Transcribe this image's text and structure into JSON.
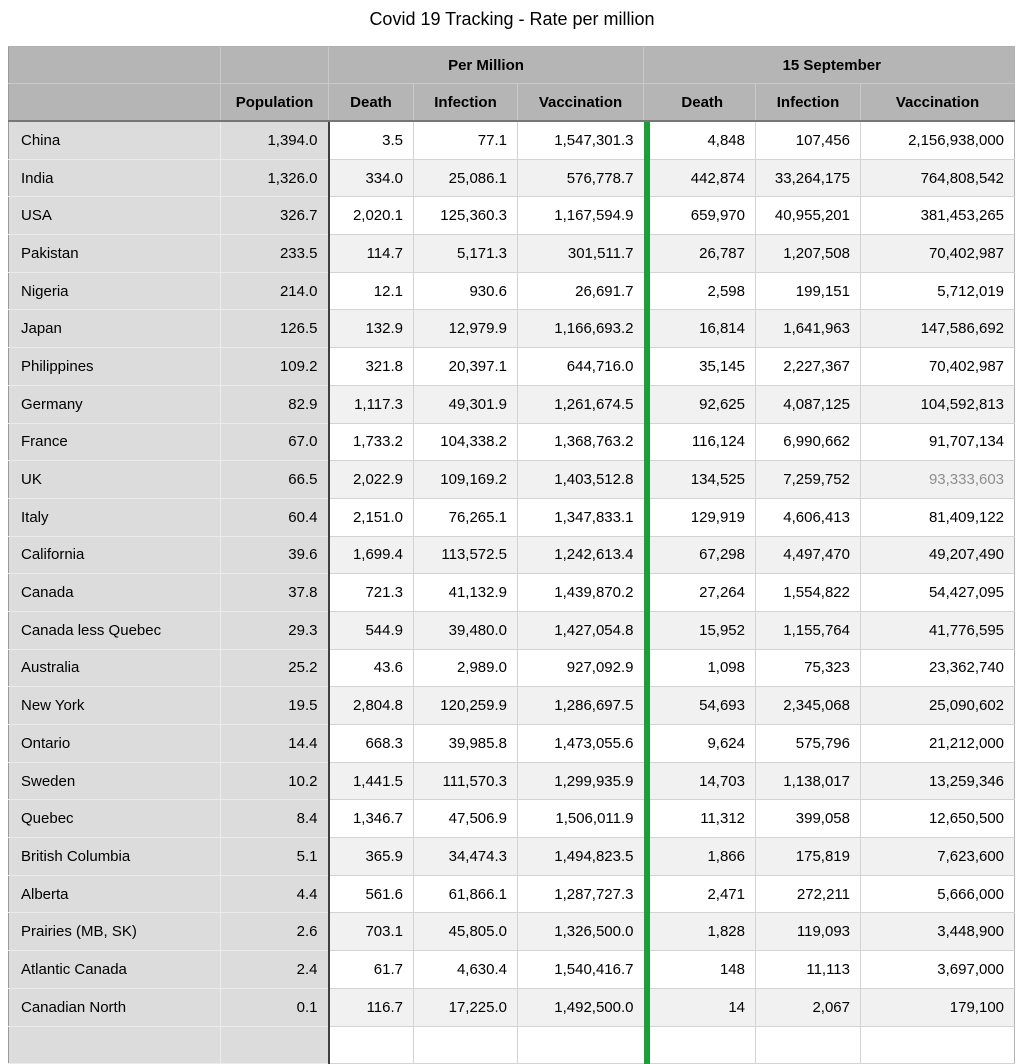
{
  "title": "Covid 19 Tracking - Rate per million",
  "chart_data": {
    "type": "table",
    "title": "Covid 19 Tracking - Rate per million",
    "groups": {
      "per_million": "Per Million",
      "sept15": "15 September"
    },
    "columns": {
      "population": "Population",
      "pm_death": "Death",
      "pm_infection": "Infection",
      "pm_vaccination": "Vaccination",
      "s15_death": "Death",
      "s15_infection": "Infection",
      "s15_vaccination": "Vaccination"
    },
    "colors": {
      "header_bg": "#b5b5b5",
      "label_column_bg": "#dcdcdc",
      "row_stripe_bg": "#f1f1f2",
      "green_divider": "#1e9e38",
      "muted_value_text": "#8e8e8e"
    },
    "rows": [
      {
        "name": "China",
        "population": "1,394.0",
        "pm_death": "3.5",
        "pm_infection": "77.1",
        "pm_vaccination": "1,547,301.3",
        "s15_death": "4,848",
        "s15_infection": "107,456",
        "s15_vaccination": "2,156,938,000"
      },
      {
        "name": "India",
        "population": "1,326.0",
        "pm_death": "334.0",
        "pm_infection": "25,086.1",
        "pm_vaccination": "576,778.7",
        "s15_death": "442,874",
        "s15_infection": "33,264,175",
        "s15_vaccination": "764,808,542"
      },
      {
        "name": "USA",
        "population": "326.7",
        "pm_death": "2,020.1",
        "pm_infection": "125,360.3",
        "pm_vaccination": "1,167,594.9",
        "s15_death": "659,970",
        "s15_infection": "40,955,201",
        "s15_vaccination": "381,453,265"
      },
      {
        "name": "Pakistan",
        "population": "233.5",
        "pm_death": "114.7",
        "pm_infection": "5,171.3",
        "pm_vaccination": "301,511.7",
        "s15_death": "26,787",
        "s15_infection": "1,207,508",
        "s15_vaccination": "70,402,987"
      },
      {
        "name": "Nigeria",
        "population": "214.0",
        "pm_death": "12.1",
        "pm_infection": "930.6",
        "pm_vaccination": "26,691.7",
        "s15_death": "2,598",
        "s15_infection": "199,151",
        "s15_vaccination": "5,712,019"
      },
      {
        "name": "Japan",
        "population": "126.5",
        "pm_death": "132.9",
        "pm_infection": "12,979.9",
        "pm_vaccination": "1,166,693.2",
        "s15_death": "16,814",
        "s15_infection": "1,641,963",
        "s15_vaccination": "147,586,692"
      },
      {
        "name": "Philippines",
        "population": "109.2",
        "pm_death": "321.8",
        "pm_infection": "20,397.1",
        "pm_vaccination": "644,716.0",
        "s15_death": "35,145",
        "s15_infection": "2,227,367",
        "s15_vaccination": "70,402,987"
      },
      {
        "name": "Germany",
        "population": "82.9",
        "pm_death": "1,117.3",
        "pm_infection": "49,301.9",
        "pm_vaccination": "1,261,674.5",
        "s15_death": "92,625",
        "s15_infection": "4,087,125",
        "s15_vaccination": "104,592,813"
      },
      {
        "name": "France",
        "population": "67.0",
        "pm_death": "1,733.2",
        "pm_infection": "104,338.2",
        "pm_vaccination": "1,368,763.2",
        "s15_death": "116,124",
        "s15_infection": "6,990,662",
        "s15_vaccination": "91,707,134"
      },
      {
        "name": "UK",
        "population": "66.5",
        "pm_death": "2,022.9",
        "pm_infection": "109,169.2",
        "pm_vaccination": "1,403,512.8",
        "s15_death": "134,525",
        "s15_infection": "7,259,752",
        "s15_vaccination": "93,333,603",
        "s15_vaccination_muted": true
      },
      {
        "name": "Italy",
        "population": "60.4",
        "pm_death": "2,151.0",
        "pm_infection": "76,265.1",
        "pm_vaccination": "1,347,833.1",
        "s15_death": "129,919",
        "s15_infection": "4,606,413",
        "s15_vaccination": "81,409,122"
      },
      {
        "name": "California",
        "population": "39.6",
        "pm_death": "1,699.4",
        "pm_infection": "113,572.5",
        "pm_vaccination": "1,242,613.4",
        "s15_death": "67,298",
        "s15_infection": "4,497,470",
        "s15_vaccination": "49,207,490"
      },
      {
        "name": "Canada",
        "population": "37.8",
        "pm_death": "721.3",
        "pm_infection": "41,132.9",
        "pm_vaccination": "1,439,870.2",
        "s15_death": "27,264",
        "s15_infection": "1,554,822",
        "s15_vaccination": "54,427,095"
      },
      {
        "name": "Canada less Quebec",
        "population": "29.3",
        "pm_death": "544.9",
        "pm_infection": "39,480.0",
        "pm_vaccination": "1,427,054.8",
        "s15_death": "15,952",
        "s15_infection": "1,155,764",
        "s15_vaccination": "41,776,595"
      },
      {
        "name": "Australia",
        "population": "25.2",
        "pm_death": "43.6",
        "pm_infection": "2,989.0",
        "pm_vaccination": "927,092.9",
        "s15_death": "1,098",
        "s15_infection": "75,323",
        "s15_vaccination": "23,362,740"
      },
      {
        "name": "New York",
        "population": "19.5",
        "pm_death": "2,804.8",
        "pm_infection": "120,259.9",
        "pm_vaccination": "1,286,697.5",
        "s15_death": "54,693",
        "s15_infection": "2,345,068",
        "s15_vaccination": "25,090,602"
      },
      {
        "name": "Ontario",
        "population": "14.4",
        "pm_death": "668.3",
        "pm_infection": "39,985.8",
        "pm_vaccination": "1,473,055.6",
        "s15_death": "9,624",
        "s15_infection": "575,796",
        "s15_vaccination": "21,212,000"
      },
      {
        "name": "Sweden",
        "population": "10.2",
        "pm_death": "1,441.5",
        "pm_infection": "111,570.3",
        "pm_vaccination": "1,299,935.9",
        "s15_death": "14,703",
        "s15_infection": "1,138,017",
        "s15_vaccination": "13,259,346"
      },
      {
        "name": "Quebec",
        "population": "8.4",
        "pm_death": "1,346.7",
        "pm_infection": "47,506.9",
        "pm_vaccination": "1,506,011.9",
        "s15_death": "11,312",
        "s15_infection": "399,058",
        "s15_vaccination": "12,650,500"
      },
      {
        "name": "British Columbia",
        "population": "5.1",
        "pm_death": "365.9",
        "pm_infection": "34,474.3",
        "pm_vaccination": "1,494,823.5",
        "s15_death": "1,866",
        "s15_infection": "175,819",
        "s15_vaccination": "7,623,600"
      },
      {
        "name": "Alberta",
        "population": "4.4",
        "pm_death": "561.6",
        "pm_infection": "61,866.1",
        "pm_vaccination": "1,287,727.3",
        "s15_death": "2,471",
        "s15_infection": "272,211",
        "s15_vaccination": "5,666,000"
      },
      {
        "name": "Prairies (MB, SK)",
        "population": "2.6",
        "pm_death": "703.1",
        "pm_infection": "45,805.0",
        "pm_vaccination": "1,326,500.0",
        "s15_death": "1,828",
        "s15_infection": "119,093",
        "s15_vaccination": "3,448,900"
      },
      {
        "name": "Atlantic Canada",
        "population": "2.4",
        "pm_death": "61.7",
        "pm_infection": "4,630.4",
        "pm_vaccination": "1,540,416.7",
        "s15_death": "148",
        "s15_infection": "11,113",
        "s15_vaccination": "3,697,000"
      },
      {
        "name": "Canadian North",
        "population": "0.1",
        "pm_death": "116.7",
        "pm_infection": "17,225.0",
        "pm_vaccination": "1,492,500.0",
        "s15_death": "14",
        "s15_infection": "2,067",
        "s15_vaccination": "179,100"
      }
    ]
  }
}
